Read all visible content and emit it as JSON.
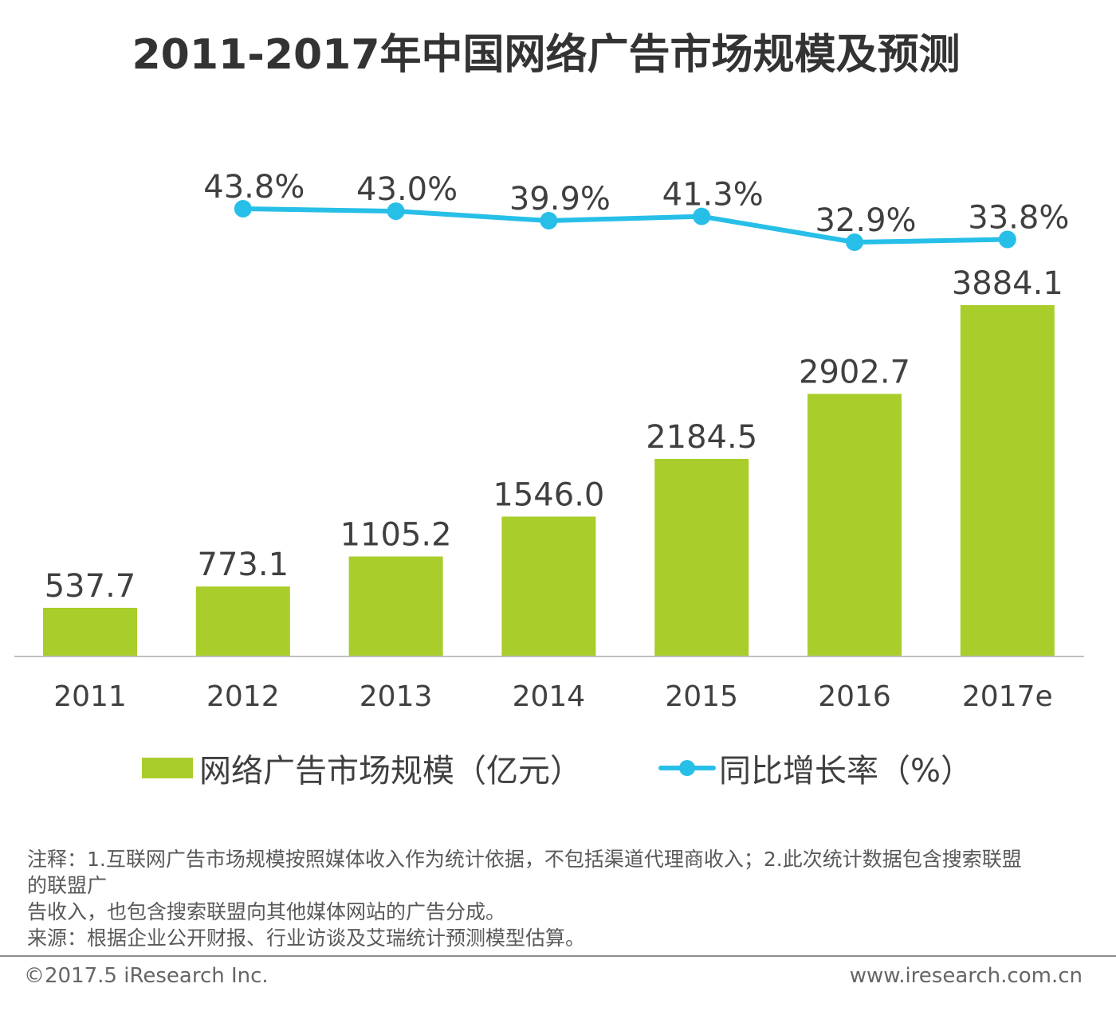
{
  "chart_data": {
    "type": "bar+line",
    "title": "2011-2017年中国网络广告市场规模及预测",
    "categories": [
      "2011",
      "2012",
      "2013",
      "2014",
      "2015",
      "2016",
      "2017e"
    ],
    "series": [
      {
        "name": "网络广告市场规模（亿元）",
        "type": "bar",
        "color": "#a9cd2a",
        "values": [
          537.7,
          773.1,
          1105.2,
          1546.0,
          2184.5,
          2902.7,
          3884.1
        ],
        "labels": [
          "537.7",
          "773.1",
          "1105.2",
          "1546.0",
          "2184.5",
          "2902.7",
          "3884.1"
        ]
      },
      {
        "name": "同比增长率（%）",
        "type": "line",
        "color": "#27bfe8",
        "categories": [
          "2012",
          "2013",
          "2014",
          "2015",
          "2016",
          "2017e"
        ],
        "values": [
          43.8,
          43.0,
          39.9,
          41.3,
          32.9,
          33.8
        ],
        "labels": [
          "43.8%",
          "43.0%",
          "39.9%",
          "41.3%",
          "32.9%",
          "33.8%"
        ]
      }
    ],
    "xlabel": "",
    "ylabel": "",
    "ylim": [
      0,
      4000
    ],
    "grid": false,
    "legend_position": "bottom"
  },
  "legend": {
    "bar_label": "网络广告市场规模（亿元）",
    "line_label": "同比增长率（%）"
  },
  "notes": {
    "line1": "注释：1.互联网广告市场规模按照媒体收入作为统计依据，不包括渠道代理商收入；2.此次统计数据包含搜索联盟",
    "line2": "的联盟广",
    "line3": "告收入，也包含搜索联盟向其他媒体网站的广告分成。",
    "line4": "来源：根据企业公开财报、行业访谈及艾瑞统计预测模型估算。"
  },
  "footer": {
    "copyright": "©2017.5 iResearch Inc.",
    "website": "www.iresearch.com.cn"
  }
}
